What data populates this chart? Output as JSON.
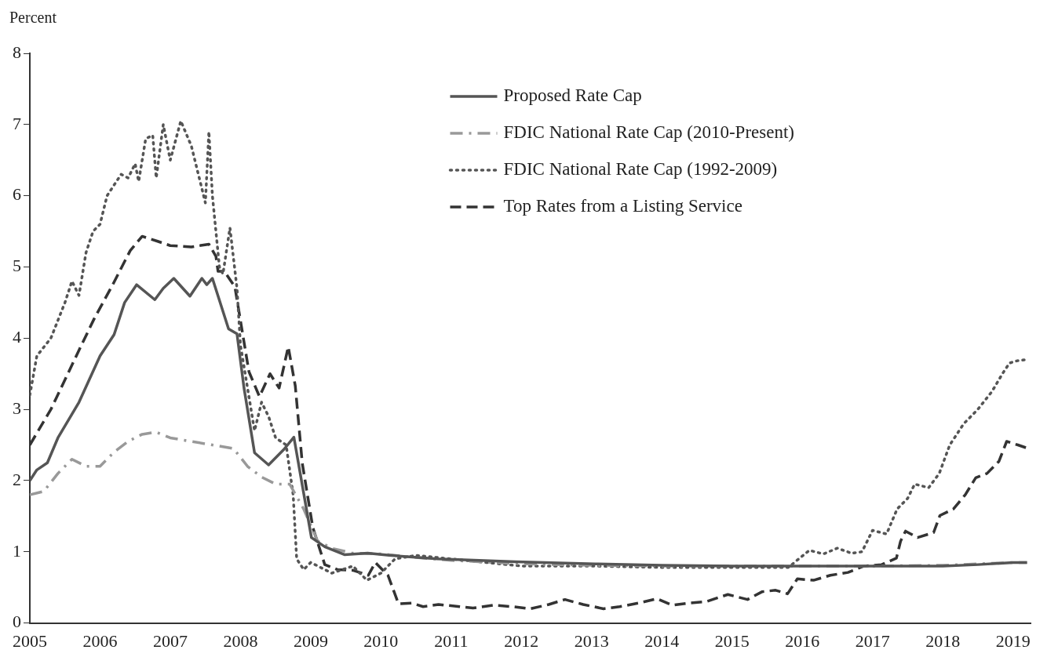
{
  "chart_data": {
    "type": "line",
    "ylabel": "Percent",
    "xlim": [
      2005,
      2019.25
    ],
    "xticks": [
      {
        "value": 2005,
        "label": "2005"
      },
      {
        "value": 2006,
        "label": "2006"
      },
      {
        "value": 2007,
        "label": "2007"
      },
      {
        "value": 2008,
        "label": "2008"
      },
      {
        "value": 2009,
        "label": "2009"
      },
      {
        "value": 2010,
        "label": "2010"
      },
      {
        "value": 2011,
        "label": "2011"
      },
      {
        "value": 2012,
        "label": "2012"
      },
      {
        "value": 2013,
        "label": "2013"
      },
      {
        "value": 2014,
        "label": "2014"
      },
      {
        "value": 2015,
        "label": "2015"
      },
      {
        "value": 2016,
        "label": "2016"
      },
      {
        "value": 2017,
        "label": "2017"
      },
      {
        "value": 2018,
        "label": "2018"
      },
      {
        "value": 2019,
        "label": "2019"
      }
    ],
    "ylim": [
      0,
      8
    ],
    "yticks": [
      0,
      1,
      2,
      3,
      4,
      5,
      6,
      7,
      8
    ],
    "grid": false,
    "legend": "top right",
    "marker": "none",
    "series": [
      {
        "name": "Proposed Rate Cap",
        "color": "#555555",
        "line_style": "solid",
        "x": [
          2005,
          2005.1,
          2005.25,
          2005.4,
          2005.7,
          2006,
          2006.2,
          2006.35,
          2006.52,
          2006.78,
          2006.9,
          2007.05,
          2007.28,
          2007.45,
          2007.52,
          2007.6,
          2007.83,
          2007.95,
          2008.05,
          2008.2,
          2008.4,
          2008.62,
          2008.76,
          2009.01,
          2009.2,
          2009.48,
          2009.81,
          2010.12,
          2010.8,
          2011.92,
          2013.05,
          2014,
          2015,
          2016,
          2017,
          2018,
          2018.5,
          2019,
          2019.2
        ],
        "values": [
          2.0,
          2.15,
          2.25,
          2.6,
          3.1,
          3.75,
          4.05,
          4.5,
          4.75,
          4.54,
          4.7,
          4.84,
          4.59,
          4.84,
          4.75,
          4.84,
          4.13,
          4.06,
          3.3,
          2.39,
          2.22,
          2.44,
          2.61,
          1.2,
          1.07,
          0.96,
          0.98,
          0.95,
          0.9,
          0.86,
          0.83,
          0.81,
          0.8,
          0.8,
          0.8,
          0.8,
          0.82,
          0.85,
          0.85
        ]
      },
      {
        "name": "FDIC National Rate Cap (2010-Present)",
        "color": "#999999",
        "line_style": "dashdot",
        "x": [
          2005,
          2005.2,
          2005.4,
          2005.6,
          2005.8,
          2006,
          2006.2,
          2006.4,
          2006.6,
          2006.8,
          2007,
          2007.3,
          2007.6,
          2007.9,
          2008.1,
          2008.3,
          2008.5,
          2008.7,
          2008.9,
          2009.1,
          2009.3,
          2009.6,
          2010,
          2010.5,
          2011,
          2012,
          2013,
          2014,
          2015,
          2016,
          2017,
          2018,
          2019,
          2019.2
        ],
        "values": [
          1.8,
          1.85,
          2.1,
          2.3,
          2.2,
          2.2,
          2.4,
          2.55,
          2.65,
          2.68,
          2.6,
          2.55,
          2.5,
          2.45,
          2.2,
          2.05,
          1.95,
          1.95,
          1.6,
          1.15,
          1.05,
          0.98,
          0.97,
          0.92,
          0.88,
          0.83,
          0.81,
          0.8,
          0.8,
          0.8,
          0.8,
          0.81,
          0.85,
          0.85
        ]
      },
      {
        "name": "FDIC National Rate Cap (1992-2009)",
        "color": "#555555",
        "line_style": "dotted",
        "x": [
          2005,
          2005.1,
          2005.3,
          2005.5,
          2005.6,
          2005.7,
          2005.8,
          2005.9,
          2006,
          2006.1,
          2006.3,
          2006.4,
          2006.5,
          2006.55,
          2006.65,
          2006.75,
          2006.8,
          2006.9,
          2007,
          2007.15,
          2007.3,
          2007.4,
          2007.5,
          2007.55,
          2007.6,
          2007.7,
          2007.75,
          2007.85,
          2007.95,
          2008,
          2008.1,
          2008.2,
          2008.3,
          2008.4,
          2008.5,
          2008.65,
          2008.75,
          2008.8,
          2008.9,
          2009,
          2009.3,
          2009.6,
          2009.8,
          2010,
          2010.2,
          2010.5,
          2011,
          2011.5,
          2012,
          2013,
          2014,
          2015,
          2015.8,
          2015.95,
          2016.1,
          2016.3,
          2016.5,
          2016.7,
          2016.85,
          2017,
          2017.2,
          2017.35,
          2017.5,
          2017.6,
          2017.8,
          2017.95,
          2018.1,
          2018.3,
          2018.5,
          2018.7,
          2018.85,
          2018.95,
          2019.05,
          2019.2
        ],
        "values": [
          3.2,
          3.75,
          4.0,
          4.5,
          4.8,
          4.6,
          5.2,
          5.5,
          5.6,
          6.0,
          6.3,
          6.25,
          6.45,
          6.2,
          6.8,
          6.85,
          6.25,
          7.0,
          6.5,
          7.05,
          6.7,
          6.3,
          5.9,
          6.9,
          6.0,
          5.0,
          4.9,
          5.55,
          4.7,
          3.9,
          3.3,
          2.7,
          3.1,
          2.9,
          2.6,
          2.5,
          1.8,
          0.9,
          0.75,
          0.85,
          0.7,
          0.8,
          0.6,
          0.7,
          0.9,
          0.95,
          0.9,
          0.85,
          0.8,
          0.8,
          0.78,
          0.78,
          0.78,
          0.9,
          1.02,
          0.97,
          1.05,
          0.98,
          1.0,
          1.3,
          1.25,
          1.6,
          1.75,
          1.95,
          1.9,
          2.1,
          2.5,
          2.8,
          3.0,
          3.25,
          3.5,
          3.65,
          3.68,
          3.7
        ]
      },
      {
        "name": "Top Rates from a Listing Service",
        "color": "#333333",
        "line_style": "dashed",
        "x": [
          2005,
          2005.3,
          2005.7,
          2005.92,
          2006.18,
          2006.43,
          2006.6,
          2006.82,
          2007,
          2007.3,
          2007.55,
          2007.65,
          2007.68,
          2007.77,
          2007.92,
          2008.12,
          2008.27,
          2008.42,
          2008.55,
          2008.68,
          2008.78,
          2008.88,
          2009.03,
          2009.2,
          2009.38,
          2009.6,
          2009.82,
          2009.92,
          2010.1,
          2010.25,
          2010.44,
          2010.6,
          2010.82,
          2011.12,
          2011.31,
          2011.6,
          2011.87,
          2012.13,
          2012.39,
          2012.62,
          2012.88,
          2013.17,
          2013.4,
          2013.67,
          2013.93,
          2014.15,
          2014.38,
          2014.63,
          2014.94,
          2015.22,
          2015.43,
          2015.62,
          2015.79,
          2015.93,
          2016.16,
          2016.4,
          2016.65,
          2016.88,
          2017.13,
          2017.34,
          2017.4,
          2017.47,
          2017.64,
          2017.87,
          2017.96,
          2018.15,
          2018.32,
          2018.47,
          2018.63,
          2018.8,
          2018.91,
          2019.07,
          2019.19
        ],
        "values": [
          2.5,
          3.0,
          3.83,
          4.28,
          4.75,
          5.23,
          5.43,
          5.36,
          5.3,
          5.28,
          5.32,
          5.15,
          4.94,
          4.94,
          4.72,
          3.53,
          3.18,
          3.5,
          3.3,
          3.88,
          3.33,
          2.24,
          1.34,
          0.82,
          0.75,
          0.74,
          0.67,
          0.85,
          0.67,
          0.27,
          0.28,
          0.23,
          0.26,
          0.23,
          0.21,
          0.25,
          0.23,
          0.2,
          0.26,
          0.33,
          0.26,
          0.2,
          0.23,
          0.28,
          0.34,
          0.25,
          0.28,
          0.3,
          0.4,
          0.33,
          0.44,
          0.46,
          0.41,
          0.62,
          0.6,
          0.67,
          0.71,
          0.8,
          0.82,
          0.91,
          1.15,
          1.29,
          1.2,
          1.27,
          1.51,
          1.6,
          1.8,
          2.04,
          2.1,
          2.27,
          2.55,
          2.5,
          2.46
        ]
      }
    ]
  }
}
